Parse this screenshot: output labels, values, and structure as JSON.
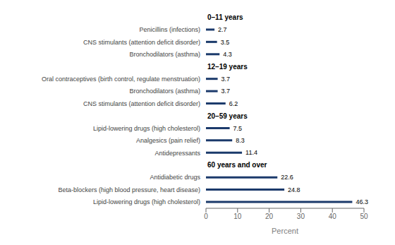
{
  "chart_data": {
    "type": "bar",
    "orientation": "horizontal",
    "xlabel": "Percent",
    "color": "#1b3a6b",
    "xlim": [
      0,
      50
    ],
    "xticks": [
      0,
      10,
      20,
      30,
      40,
      50
    ],
    "data_labels": true,
    "grid": false,
    "groups": [
      {
        "label": "0–11 years",
        "categories": [
          "Penicillins (infections)",
          "CNS stimulants (attention deficit disorder)",
          "Bronchodilators (asthma)"
        ],
        "values": [
          2.7,
          3.5,
          4.3
        ]
      },
      {
        "label": "12–19 years",
        "categories": [
          "Oral contraceptives (birth control, regulate menstruation)",
          "Bronchodilators (asthma)",
          "CNS stimulants (attention deficit disorder)"
        ],
        "values": [
          3.7,
          3.7,
          6.2
        ]
      },
      {
        "label": "20–59 years",
        "categories": [
          "Lipid-lowering drugs (high cholesterol)",
          "Analgesics (pain relief)",
          "Antidepressants"
        ],
        "values": [
          7.5,
          8.3,
          11.4
        ]
      },
      {
        "label": "60 years and over",
        "categories": [
          "Antidiabetic drugs",
          "Beta-blockers (high blood pressure, heart disease)",
          "Lipid-lowering drugs (high cholesterol)"
        ],
        "values": [
          22.6,
          24.8,
          46.3
        ]
      }
    ]
  }
}
